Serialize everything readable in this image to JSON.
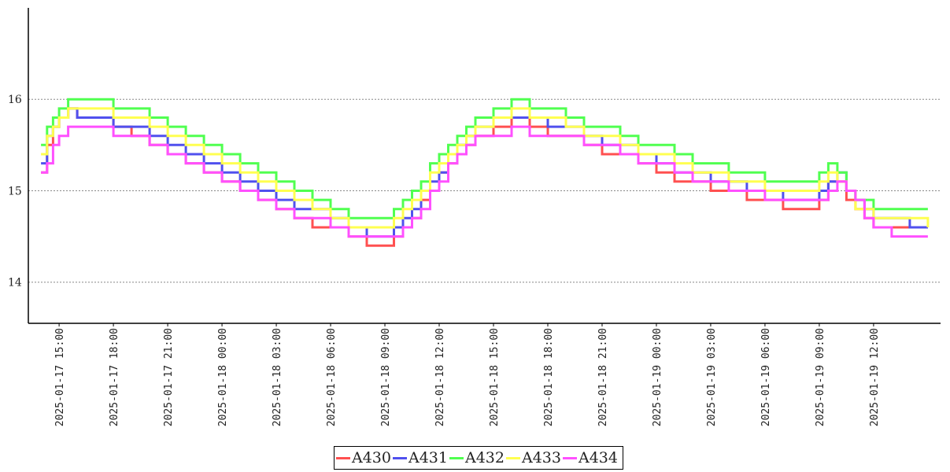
{
  "chart_data": {
    "type": "line",
    "title": "",
    "xlabel": "",
    "ylabel": "",
    "ylim": [
      13.55,
      17.0
    ],
    "xlim": [
      "2025-01-17 13:18",
      "2025-01-19 15:42"
    ],
    "x_tick_labels": [
      "2025-01-17 15:00",
      "2025-01-17 18:00",
      "2025-01-17 21:00",
      "2025-01-18 00:00",
      "2025-01-18 03:00",
      "2025-01-18 06:00",
      "2025-01-18 09:00",
      "2025-01-18 12:00",
      "2025-01-18 15:00",
      "2025-01-18 18:00",
      "2025-01-18 21:00",
      "2025-01-19 00:00",
      "2025-01-19 03:00",
      "2025-01-19 06:00",
      "2025-01-19 09:00",
      "2025-01-19 12:00"
    ],
    "y_tick_labels": [
      "14",
      "15",
      "16"
    ],
    "y_ticks": [
      14,
      15,
      16
    ],
    "grid": "horizontal-dotted",
    "legend_position": "bottom-center",
    "series": [
      {
        "name": "A430",
        "color": "#ff5050",
        "x": [
          "2025-01-17 14:00",
          "2025-01-17 14:20",
          "2025-01-17 14:40",
          "2025-01-17 15:00",
          "2025-01-17 15:30",
          "2025-01-17 16:00",
          "2025-01-17 17:00",
          "2025-01-17 18:00",
          "2025-01-17 19:00",
          "2025-01-17 20:00",
          "2025-01-17 21:00",
          "2025-01-17 22:00",
          "2025-01-17 23:00",
          "2025-01-18 00:00",
          "2025-01-18 01:00",
          "2025-01-18 02:00",
          "2025-01-18 03:00",
          "2025-01-18 04:00",
          "2025-01-18 05:00",
          "2025-01-18 06:00",
          "2025-01-18 07:00",
          "2025-01-18 08:00",
          "2025-01-18 09:00",
          "2025-01-18 09:30",
          "2025-01-18 10:00",
          "2025-01-18 10:30",
          "2025-01-18 11:00",
          "2025-01-18 11:30",
          "2025-01-18 12:00",
          "2025-01-18 12:30",
          "2025-01-18 13:00",
          "2025-01-18 13:30",
          "2025-01-18 14:00",
          "2025-01-18 15:00",
          "2025-01-18 16:00",
          "2025-01-18 17:00",
          "2025-01-18 18:00",
          "2025-01-18 19:00",
          "2025-01-18 20:00",
          "2025-01-18 21:00",
          "2025-01-18 22:00",
          "2025-01-18 23:00",
          "2025-01-19 00:00",
          "2025-01-19 01:00",
          "2025-01-19 02:00",
          "2025-01-19 03:00",
          "2025-01-19 04:00",
          "2025-01-19 05:00",
          "2025-01-19 06:00",
          "2025-01-19 07:00",
          "2025-01-19 08:00",
          "2025-01-19 09:00",
          "2025-01-19 09:30",
          "2025-01-19 10:00",
          "2025-01-19 10:30",
          "2025-01-19 11:00",
          "2025-01-19 11:30",
          "2025-01-19 12:00",
          "2025-01-19 13:00",
          "2025-01-19 14:00",
          "2025-01-19 15:00"
        ],
        "y": [
          15.2,
          15.5,
          15.7,
          15.8,
          15.9,
          15.8,
          15.8,
          15.7,
          15.6,
          15.5,
          15.4,
          15.3,
          15.2,
          15.1,
          15.0,
          14.9,
          14.8,
          14.7,
          14.6,
          14.6,
          14.5,
          14.4,
          14.4,
          14.5,
          14.6,
          14.7,
          14.9,
          15.0,
          15.2,
          15.3,
          15.4,
          15.5,
          15.6,
          15.7,
          15.8,
          15.7,
          15.6,
          15.6,
          15.5,
          15.4,
          15.4,
          15.3,
          15.2,
          15.1,
          15.1,
          15.0,
          15.0,
          14.9,
          14.9,
          14.8,
          14.8,
          14.9,
          15.1,
          15.1,
          14.9,
          14.8,
          14.7,
          14.6,
          14.6,
          14.6,
          14.6
        ]
      },
      {
        "name": "A431",
        "color": "#5050ee",
        "x": [
          "2025-01-17 14:00",
          "2025-01-17 14:20",
          "2025-01-17 14:40",
          "2025-01-17 15:00",
          "2025-01-17 15:30",
          "2025-01-17 16:00",
          "2025-01-17 17:00",
          "2025-01-17 18:00",
          "2025-01-17 19:00",
          "2025-01-17 20:00",
          "2025-01-17 21:00",
          "2025-01-17 22:00",
          "2025-01-17 23:00",
          "2025-01-18 00:00",
          "2025-01-18 01:00",
          "2025-01-18 02:00",
          "2025-01-18 03:00",
          "2025-01-18 04:00",
          "2025-01-18 05:00",
          "2025-01-18 06:00",
          "2025-01-18 07:00",
          "2025-01-18 08:00",
          "2025-01-18 09:00",
          "2025-01-18 09:30",
          "2025-01-18 10:00",
          "2025-01-18 10:30",
          "2025-01-18 11:00",
          "2025-01-18 11:30",
          "2025-01-18 12:00",
          "2025-01-18 12:30",
          "2025-01-18 13:00",
          "2025-01-18 13:30",
          "2025-01-18 14:00",
          "2025-01-18 15:00",
          "2025-01-18 16:00",
          "2025-01-18 17:00",
          "2025-01-18 18:00",
          "2025-01-18 19:00",
          "2025-01-18 20:00",
          "2025-01-18 21:00",
          "2025-01-18 22:00",
          "2025-01-18 23:00",
          "2025-01-19 00:00",
          "2025-01-19 01:00",
          "2025-01-19 02:00",
          "2025-01-19 03:00",
          "2025-01-19 04:00",
          "2025-01-19 05:00",
          "2025-01-19 06:00",
          "2025-01-19 07:00",
          "2025-01-19 08:00",
          "2025-01-19 09:00",
          "2025-01-19 09:30",
          "2025-01-19 10:00",
          "2025-01-19 10:30",
          "2025-01-19 11:00",
          "2025-01-19 11:30",
          "2025-01-19 12:00",
          "2025-01-19 13:00",
          "2025-01-19 14:00",
          "2025-01-19 15:00"
        ],
        "y": [
          15.3,
          15.6,
          15.7,
          15.8,
          15.9,
          15.8,
          15.8,
          15.7,
          15.7,
          15.6,
          15.5,
          15.4,
          15.3,
          15.2,
          15.1,
          15.0,
          14.9,
          14.8,
          14.8,
          14.7,
          14.6,
          14.5,
          14.5,
          14.6,
          14.7,
          14.8,
          15.0,
          15.1,
          15.2,
          15.4,
          15.5,
          15.6,
          15.7,
          15.8,
          15.8,
          15.8,
          15.7,
          15.7,
          15.6,
          15.5,
          15.5,
          15.4,
          15.3,
          15.2,
          15.2,
          15.1,
          15.1,
          15.0,
          15.0,
          14.9,
          14.9,
          15.0,
          15.1,
          15.2,
          15.0,
          14.9,
          14.8,
          14.7,
          14.7,
          14.6,
          14.6
        ]
      },
      {
        "name": "A432",
        "color": "#50ff50",
        "x": [
          "2025-01-17 14:00",
          "2025-01-17 14:20",
          "2025-01-17 14:40",
          "2025-01-17 15:00",
          "2025-01-17 15:30",
          "2025-01-17 16:00",
          "2025-01-17 17:00",
          "2025-01-17 18:00",
          "2025-01-17 19:00",
          "2025-01-17 20:00",
          "2025-01-17 21:00",
          "2025-01-17 22:00",
          "2025-01-17 23:00",
          "2025-01-18 00:00",
          "2025-01-18 01:00",
          "2025-01-18 02:00",
          "2025-01-18 03:00",
          "2025-01-18 04:00",
          "2025-01-18 05:00",
          "2025-01-18 06:00",
          "2025-01-18 07:00",
          "2025-01-18 08:00",
          "2025-01-18 09:00",
          "2025-01-18 09:30",
          "2025-01-18 10:00",
          "2025-01-18 10:30",
          "2025-01-18 11:00",
          "2025-01-18 11:30",
          "2025-01-18 12:00",
          "2025-01-18 12:30",
          "2025-01-18 13:00",
          "2025-01-18 13:30",
          "2025-01-18 14:00",
          "2025-01-18 15:00",
          "2025-01-18 16:00",
          "2025-01-18 17:00",
          "2025-01-18 18:00",
          "2025-01-18 19:00",
          "2025-01-18 20:00",
          "2025-01-18 21:00",
          "2025-01-18 22:00",
          "2025-01-18 23:00",
          "2025-01-19 00:00",
          "2025-01-19 01:00",
          "2025-01-19 02:00",
          "2025-01-19 03:00",
          "2025-01-19 04:00",
          "2025-01-19 05:00",
          "2025-01-19 06:00",
          "2025-01-19 07:00",
          "2025-01-19 08:00",
          "2025-01-19 09:00",
          "2025-01-19 09:30",
          "2025-01-19 10:00",
          "2025-01-19 10:30",
          "2025-01-19 11:00",
          "2025-01-19 11:30",
          "2025-01-19 12:00",
          "2025-01-19 13:00",
          "2025-01-19 14:00",
          "2025-01-19 15:00"
        ],
        "y": [
          15.5,
          15.7,
          15.8,
          15.9,
          16.0,
          16.0,
          16.0,
          15.9,
          15.9,
          15.8,
          15.7,
          15.6,
          15.5,
          15.4,
          15.3,
          15.2,
          15.1,
          15.0,
          14.9,
          14.8,
          14.7,
          14.7,
          14.7,
          14.8,
          14.9,
          15.0,
          15.1,
          15.3,
          15.4,
          15.5,
          15.6,
          15.7,
          15.8,
          15.9,
          16.0,
          15.9,
          15.9,
          15.8,
          15.7,
          15.7,
          15.6,
          15.5,
          15.5,
          15.4,
          15.3,
          15.3,
          15.2,
          15.2,
          15.1,
          15.1,
          15.1,
          15.2,
          15.3,
          15.2,
          15.0,
          14.9,
          14.9,
          14.8,
          14.8,
          14.8,
          14.8
        ]
      },
      {
        "name": "A433",
        "color": "#ffff50",
        "x": [
          "2025-01-17 14:00",
          "2025-01-17 14:20",
          "2025-01-17 14:40",
          "2025-01-17 15:00",
          "2025-01-17 15:30",
          "2025-01-17 16:00",
          "2025-01-17 17:00",
          "2025-01-17 18:00",
          "2025-01-17 19:00",
          "2025-01-17 20:00",
          "2025-01-17 21:00",
          "2025-01-17 22:00",
          "2025-01-17 23:00",
          "2025-01-18 00:00",
          "2025-01-18 01:00",
          "2025-01-18 02:00",
          "2025-01-18 03:00",
          "2025-01-18 04:00",
          "2025-01-18 05:00",
          "2025-01-18 06:00",
          "2025-01-18 07:00",
          "2025-01-18 08:00",
          "2025-01-18 09:00",
          "2025-01-18 09:30",
          "2025-01-18 10:00",
          "2025-01-18 10:30",
          "2025-01-18 11:00",
          "2025-01-18 11:30",
          "2025-01-18 12:00",
          "2025-01-18 12:30",
          "2025-01-18 13:00",
          "2025-01-18 13:30",
          "2025-01-18 14:00",
          "2025-01-18 15:00",
          "2025-01-18 16:00",
          "2025-01-18 17:00",
          "2025-01-18 18:00",
          "2025-01-18 19:00",
          "2025-01-18 20:00",
          "2025-01-18 21:00",
          "2025-01-18 22:00",
          "2025-01-18 23:00",
          "2025-01-19 00:00",
          "2025-01-19 01:00",
          "2025-01-19 02:00",
          "2025-01-19 03:00",
          "2025-01-19 04:00",
          "2025-01-19 05:00",
          "2025-01-19 06:00",
          "2025-01-19 07:00",
          "2025-01-19 08:00",
          "2025-01-19 09:00",
          "2025-01-19 09:30",
          "2025-01-19 10:00",
          "2025-01-19 10:30",
          "2025-01-19 11:00",
          "2025-01-19 11:30",
          "2025-01-19 12:00",
          "2025-01-19 13:00",
          "2025-01-19 14:00",
          "2025-01-19 15:00"
        ],
        "y": [
          15.4,
          15.6,
          15.7,
          15.8,
          15.9,
          15.9,
          15.9,
          15.8,
          15.8,
          15.7,
          15.6,
          15.5,
          15.4,
          15.3,
          15.2,
          15.1,
          15.0,
          14.9,
          14.8,
          14.7,
          14.6,
          14.6,
          14.6,
          14.7,
          14.8,
          14.9,
          15.0,
          15.2,
          15.3,
          15.4,
          15.5,
          15.6,
          15.7,
          15.8,
          15.9,
          15.8,
          15.8,
          15.7,
          15.6,
          15.6,
          15.5,
          15.4,
          15.4,
          15.3,
          15.2,
          15.2,
          15.1,
          15.1,
          15.0,
          15.0,
          15.0,
          15.1,
          15.2,
          15.1,
          15.0,
          14.8,
          14.8,
          14.7,
          14.7,
          14.7,
          14.6
        ]
      },
      {
        "name": "A434",
        "color": "#ff50ff",
        "x": [
          "2025-01-17 14:00",
          "2025-01-17 14:20",
          "2025-01-17 14:40",
          "2025-01-17 15:00",
          "2025-01-17 15:30",
          "2025-01-17 16:00",
          "2025-01-17 17:00",
          "2025-01-17 18:00",
          "2025-01-17 19:00",
          "2025-01-17 20:00",
          "2025-01-17 21:00",
          "2025-01-17 22:00",
          "2025-01-17 23:00",
          "2025-01-18 00:00",
          "2025-01-18 01:00",
          "2025-01-18 02:00",
          "2025-01-18 03:00",
          "2025-01-18 04:00",
          "2025-01-18 05:00",
          "2025-01-18 06:00",
          "2025-01-18 07:00",
          "2025-01-18 08:00",
          "2025-01-18 09:00",
          "2025-01-18 09:30",
          "2025-01-18 10:00",
          "2025-01-18 10:30",
          "2025-01-18 11:00",
          "2025-01-18 11:30",
          "2025-01-18 12:00",
          "2025-01-18 12:30",
          "2025-01-18 13:00",
          "2025-01-18 13:30",
          "2025-01-18 14:00",
          "2025-01-18 15:00",
          "2025-01-18 16:00",
          "2025-01-18 17:00",
          "2025-01-18 18:00",
          "2025-01-18 19:00",
          "2025-01-18 20:00",
          "2025-01-18 21:00",
          "2025-01-18 22:00",
          "2025-01-18 23:00",
          "2025-01-19 00:00",
          "2025-01-19 01:00",
          "2025-01-19 02:00",
          "2025-01-19 03:00",
          "2025-01-19 04:00",
          "2025-01-19 05:00",
          "2025-01-19 06:00",
          "2025-01-19 07:00",
          "2025-01-19 08:00",
          "2025-01-19 09:00",
          "2025-01-19 09:30",
          "2025-01-19 10:00",
          "2025-01-19 10:30",
          "2025-01-19 11:00",
          "2025-01-19 11:30",
          "2025-01-19 12:00",
          "2025-01-19 13:00",
          "2025-01-19 14:00",
          "2025-01-19 15:00"
        ],
        "y": [
          15.2,
          15.3,
          15.5,
          15.6,
          15.7,
          15.7,
          15.7,
          15.6,
          15.6,
          15.5,
          15.4,
          15.3,
          15.2,
          15.1,
          15.0,
          14.9,
          14.8,
          14.7,
          14.7,
          14.6,
          14.5,
          14.5,
          14.5,
          14.5,
          14.6,
          14.7,
          14.8,
          15.0,
          15.1,
          15.3,
          15.4,
          15.5,
          15.6,
          15.6,
          15.7,
          15.6,
          15.6,
          15.6,
          15.5,
          15.5,
          15.4,
          15.3,
          15.3,
          15.2,
          15.1,
          15.1,
          15.0,
          15.0,
          14.9,
          14.9,
          14.9,
          14.9,
          15.0,
          15.1,
          15.0,
          14.9,
          14.7,
          14.6,
          14.5,
          14.5,
          14.5
        ]
      }
    ]
  }
}
